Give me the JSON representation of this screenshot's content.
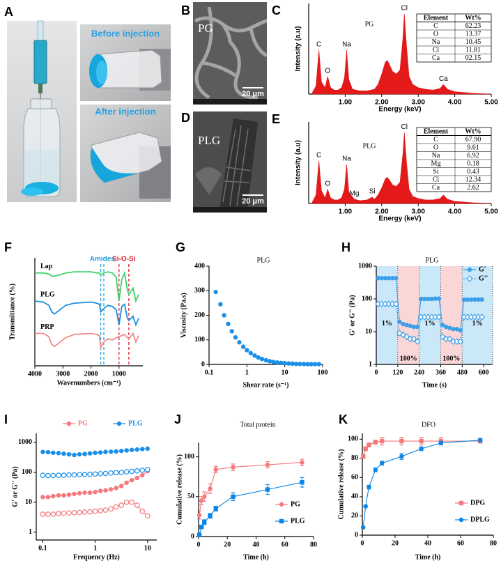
{
  "panel_labels": [
    "A",
    "B",
    "C",
    "D",
    "E",
    "F",
    "G",
    "H",
    "I",
    "J",
    "K"
  ],
  "photos": {
    "before_label": "Before injection",
    "after_label": "After injection",
    "sem_b_label": "PG",
    "sem_b_scale": "20 μm",
    "sem_d_label": "PLG",
    "sem_d_scale": "20 μm"
  },
  "chart_data": [
    {
      "type": "area",
      "title": "PG",
      "x_label": "Energy (keV)",
      "y_label": "Intensity (a.u)",
      "xlim": [
        0,
        5
      ],
      "ylim": [
        0,
        113
      ],
      "xticks": [
        {
          "value": 1,
          "label": "1.00"
        },
        {
          "value": 2,
          "label": "2.00"
        },
        {
          "value": 3,
          "label": "3.00"
        },
        {
          "value": 4,
          "label": "4.00"
        },
        {
          "value": 5,
          "label": "5.00"
        }
      ],
      "x": [
        0.1,
        0.2,
        0.28,
        0.35,
        0.45,
        0.52,
        0.6,
        0.7,
        0.8,
        0.9,
        0.98,
        1.04,
        1.1,
        1.2,
        1.4,
        1.6,
        1.8,
        1.9,
        2.0,
        2.1,
        2.15,
        2.2,
        2.3,
        2.4,
        2.5,
        2.58,
        2.62,
        2.68,
        2.75,
        2.85,
        3.0,
        3.2,
        3.4,
        3.6,
        3.69,
        3.8,
        4.0,
        4.5,
        5.0
      ],
      "series": [
        {
          "color": "#e41a1a",
          "values": [
            2,
            10,
            55,
            15,
            8,
            22,
            8,
            5,
            5,
            8,
            20,
            55,
            18,
            6,
            4,
            4,
            6,
            12,
            25,
            40,
            42,
            38,
            28,
            25,
            30,
            70,
            100,
            60,
            22,
            12,
            8,
            6,
            5,
            7,
            12,
            6,
            3,
            1,
            0
          ]
        }
      ],
      "peaks": [
        {
          "label": "C",
          "x": 0.28
        },
        {
          "label": "O",
          "x": 0.52
        },
        {
          "label": "Na",
          "x": 1.04
        },
        {
          "label": "Cl",
          "x": 2.62
        },
        {
          "label": "Ca",
          "x": 3.69
        }
      ],
      "table": {
        "columns": [
          "Element",
          "Wt%"
        ],
        "rows": [
          [
            "C",
            "62.23"
          ],
          [
            "O",
            "13.37"
          ],
          [
            "Na",
            "10.45"
          ],
          [
            "Cl",
            "11.81"
          ],
          [
            "Ca",
            "02.15"
          ]
        ]
      }
    },
    {
      "type": "area",
      "title": "PLG",
      "x_label": "Energy (keV)",
      "y_label": "Intensity (a.u)",
      "xlim": [
        0,
        5
      ],
      "ylim": [
        0,
        115
      ],
      "xticks": [
        {
          "value": 1,
          "label": "1.00"
        },
        {
          "value": 2,
          "label": "2.00"
        },
        {
          "value": 3,
          "label": "3.00"
        },
        {
          "value": 4,
          "label": "4.00"
        },
        {
          "value": 5,
          "label": "5.00"
        }
      ],
      "x": [
        0.1,
        0.2,
        0.28,
        0.35,
        0.45,
        0.52,
        0.6,
        0.7,
        0.8,
        0.9,
        0.98,
        1.04,
        1.1,
        1.25,
        1.4,
        1.6,
        1.74,
        1.8,
        1.9,
        2.0,
        2.1,
        2.15,
        2.2,
        2.3,
        2.4,
        2.5,
        2.58,
        2.62,
        2.68,
        2.75,
        2.85,
        3.0,
        3.2,
        3.4,
        3.6,
        3.69,
        3.8,
        4.0,
        4.5,
        5.0
      ],
      "series": [
        {
          "color": "#e41a1a",
          "values": [
            2,
            12,
            60,
            18,
            8,
            20,
            8,
            5,
            5,
            8,
            20,
            55,
            16,
            6,
            4,
            5,
            9,
            6,
            12,
            22,
            35,
            37,
            34,
            26,
            24,
            30,
            70,
            100,
            58,
            20,
            10,
            7,
            5,
            5,
            7,
            12,
            6,
            3,
            1,
            0
          ]
        }
      ],
      "peaks": [
        {
          "label": "C",
          "x": 0.28
        },
        {
          "label": "O",
          "x": 0.52
        },
        {
          "label": "Na",
          "x": 1.04
        },
        {
          "label": "Mg",
          "x": 1.25
        },
        {
          "label": "Si",
          "x": 1.74
        },
        {
          "label": "Cl",
          "x": 2.62
        },
        {
          "label": "Ca",
          "x": 3.69
        }
      ],
      "table": {
        "columns": [
          "Element",
          "Wt%"
        ],
        "rows": [
          [
            "C",
            "67.90"
          ],
          [
            "O",
            "9.61"
          ],
          [
            "Na",
            "6.92"
          ],
          [
            "Mg",
            "0.18"
          ],
          [
            "Si",
            "0.43"
          ],
          [
            "Cl",
            "12.34"
          ],
          [
            "Ca",
            "2.62"
          ]
        ]
      }
    },
    {
      "type": "line",
      "x_label": "Wavenumbers (cm⁻¹)",
      "y_label": "Transmittance (%)",
      "xlim": [
        4000,
        150
      ],
      "ylim": [
        0,
        100
      ],
      "xticks": [
        4000,
        3000,
        2000,
        1000
      ],
      "legend": "inline",
      "x": [
        4000,
        3700,
        3500,
        3400,
        3300,
        3000,
        2900,
        2600,
        2000,
        1800,
        1700,
        1650,
        1540,
        1400,
        1240,
        1100,
        1000,
        900,
        800,
        700,
        650,
        500,
        400,
        300
      ],
      "series": [
        {
          "name": "Lap",
          "color": "#3ad46a",
          "values": [
            86,
            86,
            85,
            83,
            83,
            85,
            86,
            87,
            87,
            86,
            86,
            84,
            86,
            87,
            86,
            82,
            60,
            80,
            86,
            70,
            66,
            72,
            60,
            66
          ]
        },
        {
          "name": "PLG",
          "color": "#1e8fe0",
          "values": [
            60,
            59,
            56,
            50,
            48,
            54,
            56,
            58,
            59,
            58,
            57,
            50,
            53,
            56,
            55,
            52,
            38,
            55,
            57,
            44,
            42,
            46,
            38,
            44
          ]
        },
        {
          "name": "PRP",
          "color": "#f08a8a",
          "values": [
            30,
            30,
            27,
            20,
            18,
            24,
            26,
            29,
            30,
            29,
            28,
            17,
            22,
            25,
            24,
            26,
            27,
            28,
            29,
            26,
            25,
            30,
            22,
            28
          ]
        }
      ],
      "annotations": [
        {
          "text": "Amides",
          "color": "#1aa0e0",
          "lines": [
            1650,
            1540
          ]
        },
        {
          "text": "Si-O-Si",
          "color": "#e01a2a",
          "lines": [
            1000,
            650
          ]
        }
      ]
    },
    {
      "type": "scatter",
      "title": "PLG",
      "x_label": "Shear rate (s⁻¹)",
      "y_label": "Viscosity (Pa.s)",
      "x_log": true,
      "xlim": [
        0.1,
        100
      ],
      "ylim": [
        0,
        400
      ],
      "xticks": [
        0.1,
        1,
        10,
        100
      ],
      "yticks": [
        0,
        100,
        200,
        300,
        400
      ],
      "x": [
        0.15,
        0.2,
        0.25,
        0.32,
        0.4,
        0.5,
        0.63,
        0.8,
        1,
        1.26,
        1.6,
        2,
        2.5,
        3.2,
        4,
        5,
        6.3,
        8,
        10,
        12.6,
        16,
        20,
        25,
        32,
        40,
        50,
        63,
        80
      ],
      "series": [
        {
          "color": "#1a8fe8",
          "marker": "circle",
          "values": [
            295,
            245,
            200,
            165,
            135,
            110,
            90,
            72,
            58,
            46,
            36,
            28,
            22,
            17,
            13,
            10,
            8,
            6,
            5,
            4,
            3,
            2,
            2,
            1.5,
            1,
            1,
            1,
            1
          ]
        }
      ]
    },
    {
      "type": "line",
      "title": "PLG",
      "x_label": "Time (s)",
      "y_label": "G' or G'' (Pa)",
      "y_log": true,
      "xlim": [
        0,
        650
      ],
      "ylim": [
        1,
        1000
      ],
      "xticks": [
        0,
        120,
        240,
        360,
        480,
        600
      ],
      "yticks": [
        1,
        10,
        100,
        1000
      ],
      "legend": "upper right",
      "regions": [
        {
          "start": 0,
          "end": 120,
          "color": "#8ccbf0",
          "label": "1%"
        },
        {
          "start": 120,
          "end": 240,
          "color": "#f4a5a5",
          "label": "100%"
        },
        {
          "start": 240,
          "end": 360,
          "color": "#8ccbf0",
          "label": "1%"
        },
        {
          "start": 360,
          "end": 480,
          "color": "#f4a5a5",
          "label": "100%"
        },
        {
          "start": 480,
          "end": 650,
          "color": "#8ccbf0",
          "label": "1%"
        }
      ],
      "x": [
        10,
        30,
        50,
        70,
        90,
        110,
        130,
        150,
        170,
        190,
        210,
        230,
        250,
        270,
        290,
        310,
        330,
        350,
        370,
        390,
        410,
        430,
        450,
        470,
        490,
        510,
        530,
        550,
        570,
        590
      ],
      "series": [
        {
          "name": "G'",
          "color": "#3d9fe8",
          "marker": "circle",
          "line_style": "solid",
          "values": [
            430,
            430,
            430,
            430,
            430,
            430,
            20,
            17,
            16,
            15,
            14,
            14,
            100,
            100,
            100,
            100,
            102,
            102,
            16,
            14,
            13,
            12,
            12,
            11,
            95,
            95,
            95,
            96,
            96,
            96
          ]
        },
        {
          "name": "G''",
          "color": "#3d9fe8",
          "marker": "diamond-open",
          "line_style": "dashed",
          "values": [
            70,
            70,
            70,
            70,
            70,
            70,
            9,
            8,
            7,
            6,
            6,
            5,
            28,
            28,
            28,
            28,
            28,
            28,
            7,
            6,
            6,
            5,
            5,
            5,
            28,
            28,
            28,
            28,
            28,
            28
          ]
        }
      ]
    },
    {
      "type": "line",
      "x_label": "Frequency (Hz)",
      "y_label": "G' or G'' (Pa)",
      "x_log": true,
      "y_log": true,
      "xlim": [
        0.075,
        15
      ],
      "ylim": [
        0.55,
        2000
      ],
      "xticks": [
        0.1,
        1,
        10
      ],
      "yticks": [
        1,
        10,
        100,
        1000
      ],
      "legend": "top",
      "x": [
        0.1,
        0.126,
        0.158,
        0.2,
        0.251,
        0.316,
        0.398,
        0.501,
        0.631,
        0.794,
        1,
        1.26,
        1.58,
        2,
        2.51,
        3.16,
        3.98,
        5.01,
        6.31,
        7.94,
        10
      ],
      "series": [
        {
          "name": "PG",
          "color": "#f4787c",
          "marker": "circle",
          "line_style": "solid",
          "values": [
            15,
            15,
            16,
            17,
            17,
            18,
            19,
            20,
            21,
            21,
            22,
            24,
            25,
            27,
            30,
            35,
            45,
            55,
            65,
            80,
            110
          ]
        },
        {
          "color": "#f4787c",
          "marker": "circle-open",
          "line_style": "solid",
          "values": [
            4,
            4,
            4,
            4.2,
            4.3,
            4.4,
            4.5,
            4.6,
            4.7,
            4.8,
            5,
            5.2,
            5.5,
            6,
            7,
            8,
            10,
            10,
            8,
            5,
            3.5
          ]
        },
        {
          "name": "PLG",
          "color": "#1a8fe8",
          "marker": "circle",
          "line_style": "solid",
          "values": [
            480,
            470,
            450,
            440,
            420,
            400,
            380,
            400,
            410,
            430,
            450,
            460,
            480,
            490,
            500,
            520,
            540,
            560,
            580,
            600,
            620
          ]
        },
        {
          "color": "#1a8fe8",
          "marker": "circle-open",
          "line_style": "solid",
          "values": [
            80,
            78,
            78,
            80,
            80,
            82,
            82,
            84,
            85,
            86,
            88,
            90,
            92,
            95,
            98,
            100,
            104,
            108,
            112,
            118,
            125
          ]
        }
      ]
    },
    {
      "type": "line",
      "title": "Total protein",
      "x_label": "Time (h)",
      "y_label": "Cumulative release (%)",
      "xlim": [
        0,
        80
      ],
      "ylim": [
        0,
        118
      ],
      "xticks": [
        0,
        20,
        40,
        60,
        80
      ],
      "yticks": [
        0,
        50,
        100
      ],
      "legend": "lower right",
      "x": [
        0.5,
        2,
        4,
        8,
        12,
        24,
        48,
        72
      ],
      "series": [
        {
          "name": "PG",
          "color": "#f4787c",
          "marker": "circle",
          "line_style": "solid",
          "values": [
            27,
            45,
            50,
            60,
            84,
            87,
            90,
            93
          ],
          "errors": [
            5,
            5,
            6,
            6,
            4,
            4,
            4,
            4
          ]
        },
        {
          "name": "PLG",
          "color": "#0a86e8",
          "marker": "square",
          "line_style": "solid",
          "values": [
            2,
            12,
            18,
            26,
            35,
            50,
            59,
            68
          ],
          "errors": [
            2,
            2,
            3,
            3,
            3,
            5,
            6,
            6
          ]
        }
      ]
    },
    {
      "type": "line",
      "title": "DFO",
      "x_label": "Time (h)",
      "y_label": "Cumulative release (%)",
      "xlim": [
        0,
        80
      ],
      "ylim": [
        0,
        106
      ],
      "xticks": [
        0,
        20,
        40,
        60,
        80
      ],
      "yticks": [
        0,
        20,
        40,
        60,
        80,
        100
      ],
      "legend": "lower right",
      "x": [
        0.5,
        2,
        4,
        8,
        12,
        24,
        36,
        48,
        72
      ],
      "series": [
        {
          "name": "DPG",
          "color": "#f4787c",
          "marker": "square",
          "line_style": "solid",
          "values": [
            82,
            90,
            94,
            97,
            98,
            98,
            98,
            98,
            98
          ],
          "errors": [
            2,
            2,
            2,
            2,
            4,
            4,
            4,
            4,
            2
          ]
        },
        {
          "name": "DPLG",
          "color": "#0a86e8",
          "marker": "circle",
          "line_style": "solid",
          "values": [
            8,
            30,
            50,
            68,
            75,
            82,
            90,
            96,
            99
          ],
          "errors": [
            1,
            1,
            2,
            2,
            2,
            3,
            2,
            2,
            2
          ]
        }
      ]
    }
  ]
}
